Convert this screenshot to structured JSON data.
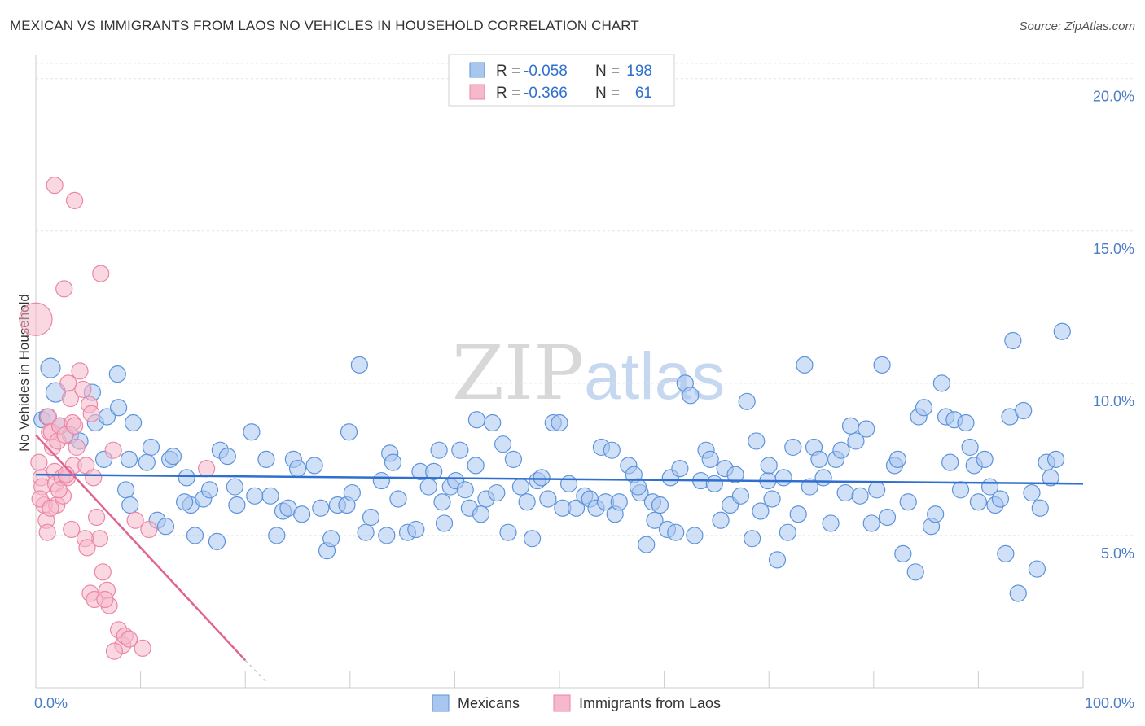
{
  "header": {
    "title": "MEXICAN VS IMMIGRANTS FROM LAOS NO VEHICLES IN HOUSEHOLD CORRELATION CHART",
    "source": "Source: ZipAtlas.com"
  },
  "watermark": {
    "zip": "ZIP",
    "atlas": "atlas"
  },
  "stats_box": {
    "rows": [
      {
        "r_label": "R =",
        "r_value": "-0.058",
        "n_label": "N =",
        "n_value": "198"
      },
      {
        "r_label": "R =",
        "r_value": "-0.366",
        "n_label": "N =",
        "n_value": "61"
      }
    ]
  },
  "legend": {
    "items": [
      "Mexicans",
      "Immigrants from Laos"
    ]
  },
  "colors": {
    "mexicans_fill": "#a9c6ee",
    "mexicans_stroke": "#5d93dc",
    "mexicans_line": "#2f6fcf",
    "laos_fill": "#f6b8cb",
    "laos_stroke": "#ec86a6",
    "laos_line": "#e0648f",
    "tick_label": "#4a7cc7"
  },
  "chart_data": {
    "type": "scatter",
    "title": "MEXICAN VS IMMIGRANTS FROM LAOS NO VEHICLES IN HOUSEHOLD CORRELATION CHART",
    "xlabel": "",
    "ylabel": "No Vehicles in Household",
    "xlim": [
      0,
      100
    ],
    "ylim": [
      0,
      20.5
    ],
    "x_tick_labels": [
      "0.0%",
      "100.0%"
    ],
    "y_ticks": [
      5,
      10,
      15,
      20
    ],
    "y_tick_labels": [
      "5.0%",
      "10.0%",
      "15.0%",
      "20.0%"
    ],
    "grid": true,
    "legend_position": "bottom-center",
    "series": [
      {
        "name": "Mexicans",
        "trend": {
          "x": [
            0,
            100
          ],
          "y": [
            7.0,
            6.7
          ]
        },
        "points": [
          [
            1.4,
            10.5
          ],
          [
            1.9,
            9.7
          ],
          [
            5.4,
            9.7
          ],
          [
            7.8,
            10.3
          ],
          [
            0.6,
            8.8
          ],
          [
            1.1,
            8.9
          ],
          [
            2.3,
            8.6
          ],
          [
            3.3,
            8.3
          ],
          [
            4.2,
            8.1
          ],
          [
            5.7,
            8.7
          ],
          [
            6.8,
            8.9
          ],
          [
            9.3,
            8.7
          ],
          [
            10.6,
            7.4
          ],
          [
            11.0,
            7.9
          ],
          [
            12.8,
            7.5
          ],
          [
            13.1,
            7.6
          ],
          [
            14.4,
            6.9
          ],
          [
            8.9,
            7.5
          ],
          [
            6.5,
            7.5
          ],
          [
            8.6,
            6.5
          ],
          [
            9.0,
            6.0
          ],
          [
            11.6,
            5.5
          ],
          [
            12.4,
            5.3
          ],
          [
            14.8,
            6.0
          ],
          [
            15.2,
            5.0
          ],
          [
            16.0,
            6.2
          ],
          [
            16.6,
            6.5
          ],
          [
            17.3,
            4.8
          ],
          [
            17.6,
            7.8
          ],
          [
            18.3,
            7.6
          ],
          [
            19.0,
            6.6
          ],
          [
            19.2,
            6.0
          ],
          [
            20.6,
            8.4
          ],
          [
            20.9,
            6.3
          ],
          [
            22.0,
            7.5
          ],
          [
            22.4,
            6.3
          ],
          [
            23.0,
            5.0
          ],
          [
            23.6,
            5.8
          ],
          [
            24.1,
            5.9
          ],
          [
            24.6,
            7.5
          ],
          [
            25.0,
            7.2
          ],
          [
            25.4,
            5.7
          ],
          [
            26.6,
            7.3
          ],
          [
            27.2,
            5.9
          ],
          [
            27.8,
            4.5
          ],
          [
            28.2,
            4.9
          ],
          [
            28.8,
            6.0
          ],
          [
            29.7,
            6.0
          ],
          [
            30.2,
            6.4
          ],
          [
            29.9,
            8.4
          ],
          [
            30.9,
            10.6
          ],
          [
            31.5,
            5.1
          ],
          [
            32.0,
            5.6
          ],
          [
            33.0,
            6.8
          ],
          [
            33.5,
            5.0
          ],
          [
            33.8,
            7.7
          ],
          [
            34.1,
            7.4
          ],
          [
            34.6,
            6.2
          ],
          [
            35.5,
            5.1
          ],
          [
            36.3,
            5.2
          ],
          [
            36.7,
            7.1
          ],
          [
            37.5,
            6.6
          ],
          [
            38.0,
            7.1
          ],
          [
            38.8,
            6.1
          ],
          [
            39.0,
            5.4
          ],
          [
            39.6,
            6.6
          ],
          [
            40.1,
            6.8
          ],
          [
            40.5,
            7.8
          ],
          [
            41.0,
            6.5
          ],
          [
            41.4,
            5.9
          ],
          [
            42.0,
            7.3
          ],
          [
            42.1,
            8.8
          ],
          [
            42.5,
            5.7
          ],
          [
            43.0,
            6.2
          ],
          [
            43.6,
            8.7
          ],
          [
            44.0,
            6.4
          ],
          [
            44.6,
            8.0
          ],
          [
            45.1,
            5.1
          ],
          [
            45.6,
            7.5
          ],
          [
            46.3,
            6.6
          ],
          [
            46.9,
            6.1
          ],
          [
            47.4,
            4.9
          ],
          [
            47.9,
            6.8
          ],
          [
            48.3,
            6.9
          ],
          [
            48.9,
            6.2
          ],
          [
            49.4,
            8.7
          ],
          [
            50.0,
            8.7
          ],
          [
            50.3,
            5.9
          ],
          [
            50.9,
            6.7
          ],
          [
            51.6,
            5.9
          ],
          [
            52.4,
            6.3
          ],
          [
            52.9,
            6.2
          ],
          [
            53.5,
            5.9
          ],
          [
            54.0,
            7.9
          ],
          [
            54.4,
            6.1
          ],
          [
            55.0,
            7.8
          ],
          [
            55.3,
            5.7
          ],
          [
            55.7,
            6.1
          ],
          [
            56.6,
            7.3
          ],
          [
            57.1,
            7.0
          ],
          [
            57.7,
            6.4
          ],
          [
            58.3,
            4.7
          ],
          [
            58.9,
            6.1
          ],
          [
            59.1,
            5.5
          ],
          [
            59.6,
            6.0
          ],
          [
            60.3,
            5.2
          ],
          [
            60.6,
            6.9
          ],
          [
            61.1,
            5.1
          ],
          [
            61.5,
            7.2
          ],
          [
            62.0,
            10.0
          ],
          [
            62.5,
            9.6
          ],
          [
            62.9,
            5.0
          ],
          [
            63.5,
            6.8
          ],
          [
            64.0,
            7.8
          ],
          [
            64.4,
            7.5
          ],
          [
            64.8,
            6.7
          ],
          [
            65.4,
            5.5
          ],
          [
            65.8,
            7.2
          ],
          [
            66.3,
            6.0
          ],
          [
            66.8,
            7.0
          ],
          [
            67.3,
            6.3
          ],
          [
            67.9,
            9.4
          ],
          [
            68.4,
            4.9
          ],
          [
            68.8,
            8.1
          ],
          [
            69.2,
            5.8
          ],
          [
            69.9,
            6.8
          ],
          [
            70.3,
            6.2
          ],
          [
            70.8,
            4.2
          ],
          [
            71.4,
            6.9
          ],
          [
            71.8,
            5.1
          ],
          [
            72.3,
            7.9
          ],
          [
            72.8,
            5.7
          ],
          [
            73.4,
            10.6
          ],
          [
            73.9,
            6.6
          ],
          [
            74.3,
            7.9
          ],
          [
            74.8,
            7.5
          ],
          [
            75.2,
            6.9
          ],
          [
            75.9,
            5.4
          ],
          [
            76.4,
            7.5
          ],
          [
            76.9,
            7.8
          ],
          [
            77.3,
            6.4
          ],
          [
            77.8,
            8.6
          ],
          [
            78.3,
            8.1
          ],
          [
            78.7,
            6.3
          ],
          [
            79.3,
            8.5
          ],
          [
            79.8,
            5.4
          ],
          [
            80.3,
            6.5
          ],
          [
            80.8,
            10.6
          ],
          [
            81.3,
            5.6
          ],
          [
            82.0,
            7.3
          ],
          [
            82.3,
            7.5
          ],
          [
            82.8,
            4.4
          ],
          [
            83.3,
            6.1
          ],
          [
            84.0,
            3.8
          ],
          [
            84.3,
            8.9
          ],
          [
            84.8,
            9.2
          ],
          [
            85.5,
            5.3
          ],
          [
            85.9,
            5.7
          ],
          [
            86.5,
            10.0
          ],
          [
            86.9,
            8.9
          ],
          [
            87.3,
            7.4
          ],
          [
            87.7,
            8.8
          ],
          [
            88.3,
            6.5
          ],
          [
            88.8,
            8.7
          ],
          [
            89.2,
            7.9
          ],
          [
            89.6,
            7.3
          ],
          [
            90.0,
            6.1
          ],
          [
            90.6,
            7.5
          ],
          [
            91.1,
            6.6
          ],
          [
            91.6,
            6.0
          ],
          [
            92.1,
            6.2
          ],
          [
            92.6,
            4.4
          ],
          [
            93.0,
            8.9
          ],
          [
            93.3,
            11.4
          ],
          [
            93.8,
            3.1
          ],
          [
            94.3,
            9.1
          ],
          [
            95.1,
            6.4
          ],
          [
            95.6,
            3.9
          ],
          [
            95.9,
            5.9
          ],
          [
            96.5,
            7.4
          ],
          [
            96.9,
            6.9
          ],
          [
            97.4,
            7.5
          ],
          [
            98.0,
            11.7
          ],
          [
            7.9,
            9.2
          ],
          [
            14.2,
            6.1
          ],
          [
            38.5,
            7.8
          ],
          [
            57.5,
            6.6
          ],
          [
            70.0,
            7.3
          ]
        ]
      },
      {
        "name": "Immigrants from Laos",
        "trend": {
          "x": [
            0,
            20
          ],
          "y": [
            8.3,
            0.9
          ]
        },
        "trend_dashed": {
          "x": [
            20,
            22
          ],
          "y": [
            0.9,
            0.2
          ]
        },
        "points": [
          [
            0.0,
            12.1
          ],
          [
            1.8,
            16.5
          ],
          [
            3.7,
            16.0
          ],
          [
            6.2,
            13.6
          ],
          [
            2.7,
            13.1
          ],
          [
            0.3,
            7.4
          ],
          [
            0.5,
            6.9
          ],
          [
            0.6,
            6.6
          ],
          [
            0.8,
            6.0
          ],
          [
            1.0,
            5.5
          ],
          [
            1.1,
            5.1
          ],
          [
            1.2,
            8.9
          ],
          [
            1.3,
            8.4
          ],
          [
            1.5,
            8.4
          ],
          [
            1.6,
            7.9
          ],
          [
            1.8,
            7.1
          ],
          [
            1.9,
            6.7
          ],
          [
            2.0,
            6.0
          ],
          [
            2.1,
            8.1
          ],
          [
            2.3,
            8.6
          ],
          [
            2.5,
            6.9
          ],
          [
            2.6,
            6.3
          ],
          [
            2.8,
            8.3
          ],
          [
            3.0,
            6.9
          ],
          [
            3.1,
            10.0
          ],
          [
            3.3,
            9.5
          ],
          [
            3.5,
            8.7
          ],
          [
            3.6,
            7.3
          ],
          [
            3.7,
            8.6
          ],
          [
            3.9,
            7.9
          ],
          [
            4.2,
            10.4
          ],
          [
            4.5,
            9.8
          ],
          [
            4.8,
            7.3
          ],
          [
            5.1,
            9.3
          ],
          [
            5.3,
            9.0
          ],
          [
            5.5,
            6.9
          ],
          [
            5.8,
            5.6
          ],
          [
            6.1,
            4.9
          ],
          [
            6.4,
            3.8
          ],
          [
            6.8,
            3.2
          ],
          [
            7.0,
            2.7
          ],
          [
            7.4,
            7.8
          ],
          [
            7.9,
            1.9
          ],
          [
            8.3,
            1.4
          ],
          [
            8.5,
            1.7
          ],
          [
            8.9,
            1.6
          ],
          [
            9.5,
            5.5
          ],
          [
            10.2,
            1.3
          ],
          [
            10.8,
            5.2
          ],
          [
            16.3,
            7.2
          ],
          [
            0.4,
            6.2
          ],
          [
            1.4,
            5.9
          ],
          [
            2.2,
            6.5
          ],
          [
            4.7,
            4.9
          ],
          [
            4.9,
            4.6
          ],
          [
            5.2,
            3.1
          ],
          [
            5.6,
            2.9
          ],
          [
            6.6,
            2.9
          ],
          [
            7.5,
            1.2
          ],
          [
            3.4,
            5.2
          ],
          [
            2.9,
            7.0
          ]
        ]
      }
    ]
  }
}
